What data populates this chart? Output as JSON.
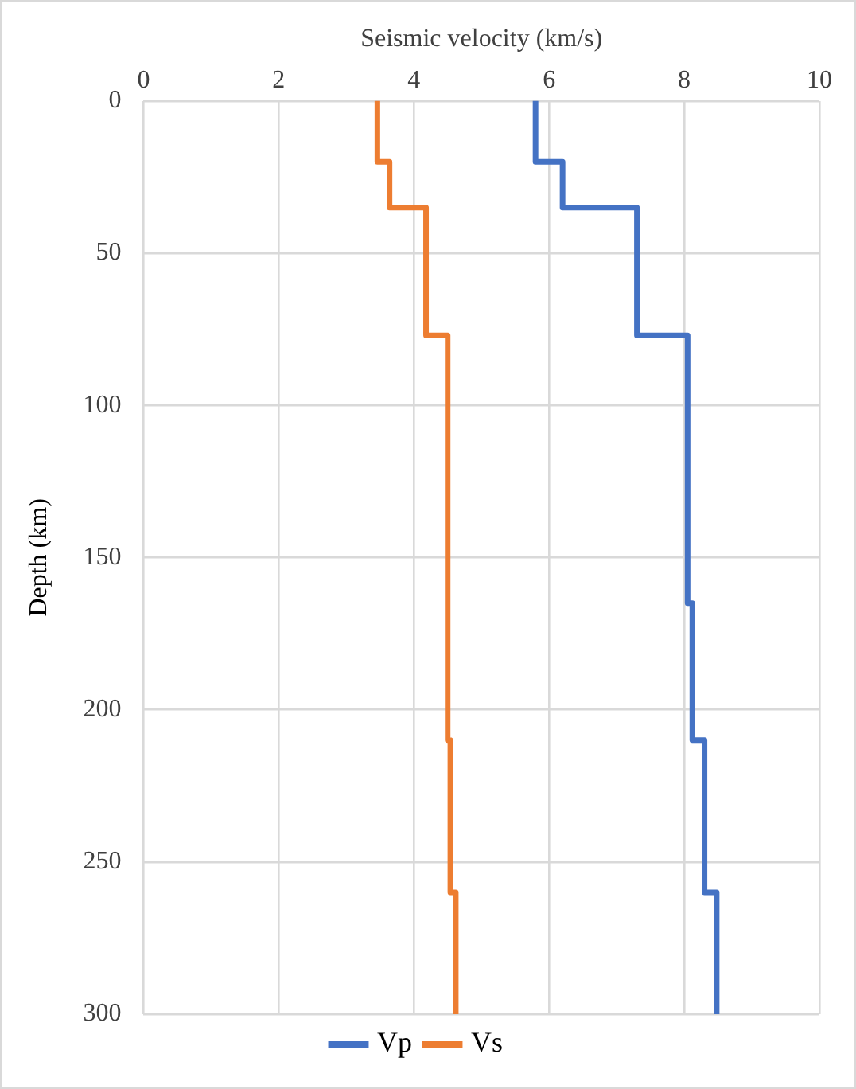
{
  "chart_data": {
    "type": "line",
    "xlabel": "Seismic velocity (km/s)",
    "ylabel": "Depth (km)",
    "xlim": [
      0,
      10
    ],
    "xticks": [
      0,
      2,
      4,
      6,
      8,
      10
    ],
    "ylim": [
      300,
      0
    ],
    "yticks": [
      0,
      50,
      100,
      150,
      200,
      250,
      300
    ],
    "grid": true,
    "legend": "bottom",
    "marker": "none",
    "line_style": "solid",
    "series": [
      {
        "name": "Vp",
        "color": "#4472c4",
        "x": [
          5.8,
          5.8,
          6.2,
          6.2,
          7.3,
          7.3,
          8.05,
          8.05,
          8.12,
          8.12,
          8.3,
          8.3,
          8.48,
          8.48
        ],
        "values": [
          0,
          20,
          20,
          35,
          35,
          77,
          77,
          165,
          165,
          210,
          210,
          260,
          260,
          300
        ]
      },
      {
        "name": "Vs",
        "color": "#ed7d31",
        "x": [
          3.46,
          3.46,
          3.64,
          3.64,
          4.18,
          4.18,
          4.5,
          4.5,
          4.54,
          4.54,
          4.62,
          4.62
        ],
        "values": [
          0,
          20,
          20,
          35,
          35,
          77,
          77,
          210,
          210,
          260,
          260,
          300
        ]
      }
    ]
  }
}
